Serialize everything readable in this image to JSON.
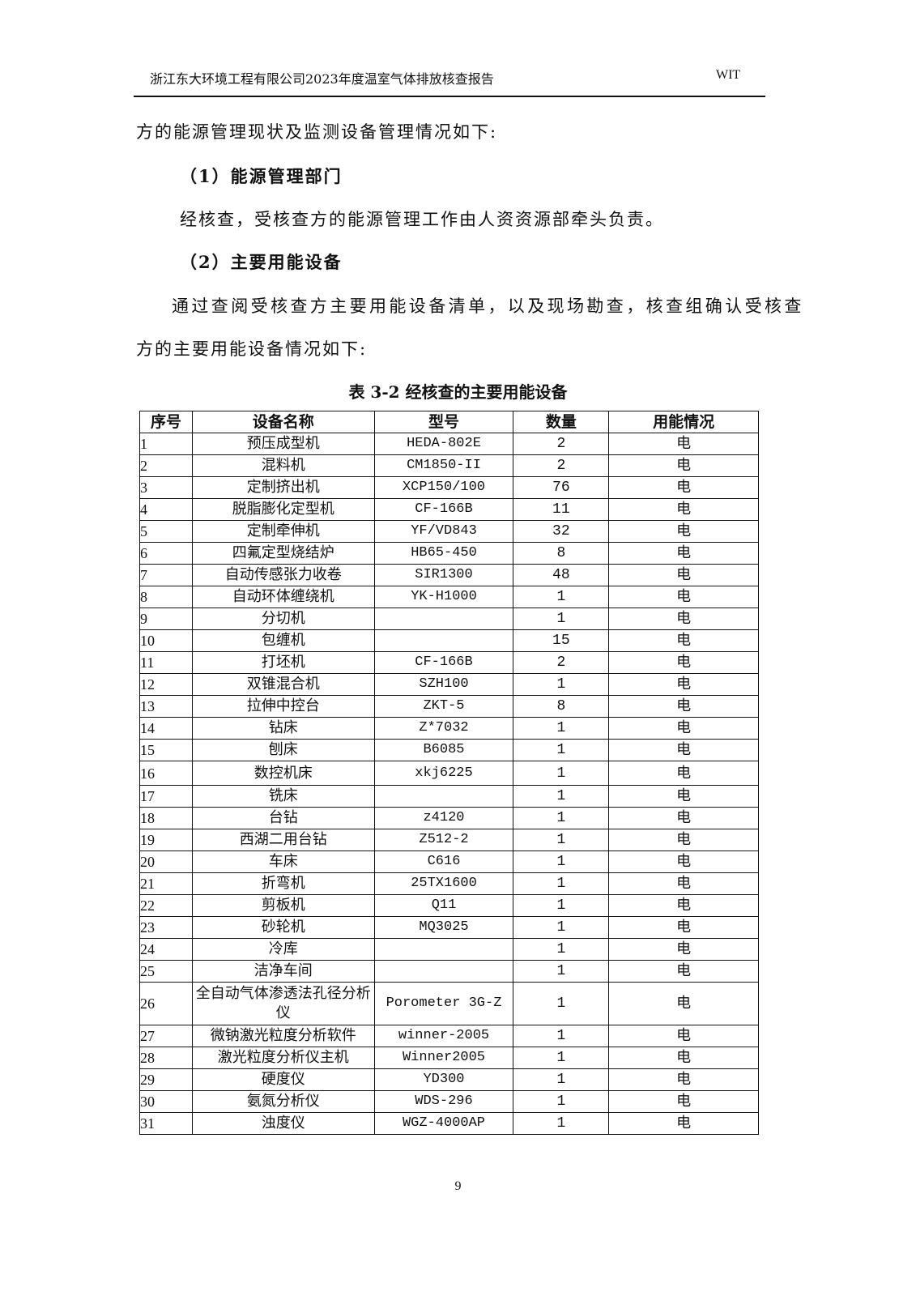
{
  "header": {
    "title": "浙江东大环境工程有限公司2023年度温室气体排放核查报告",
    "code": "WIT"
  },
  "body": {
    "line1": "方的能源管理现状及监测设备管理情况如下:",
    "h1": "（1）能源管理部门",
    "p1": "经核查，受核查方的能源管理工作由人资资源部牵头负责。",
    "h2": "（2）主要用能设备",
    "p2a": "通过查阅受核查方主要用能设备清单，以及现场勘查，核查组确认受核查",
    "p2b": "方的主要用能设备情况如下:"
  },
  "table": {
    "caption": "表 3-2  经核查的主要用能设备",
    "headers": [
      "序号",
      "设备名称",
      "型号",
      "数量",
      "用能情况"
    ],
    "rows": [
      [
        "1",
        "预压成型机",
        "HEDA-802E",
        "2",
        "电"
      ],
      [
        "2",
        "混料机",
        "CM1850-II",
        "2",
        "电"
      ],
      [
        "3",
        "定制挤出机",
        "XCP150/100",
        "76",
        "电"
      ],
      [
        "4",
        "脱脂膨化定型机",
        "CF-166B",
        "11",
        "电"
      ],
      [
        "5",
        "定制牵伸机",
        "YF/VD843",
        "32",
        "电"
      ],
      [
        "6",
        "四氟定型烧结炉",
        "HB65-450",
        "8",
        "电"
      ],
      [
        "7",
        "自动传感张力收卷",
        "SIR1300",
        "48",
        "电"
      ],
      [
        "8",
        "自动环体缠绕机",
        "YK-H1000",
        "1",
        "电"
      ],
      [
        "9",
        "分切机",
        "",
        "1",
        "电"
      ],
      [
        "10",
        "包缠机",
        "",
        "15",
        "电"
      ],
      [
        "11",
        "打坯机",
        "CF-166B",
        "2",
        "电"
      ],
      [
        "12",
        "双锥混合机",
        "SZH100",
        "1",
        "电"
      ],
      [
        "13",
        "拉伸中控台",
        "ZKT-5",
        "8",
        "电"
      ],
      [
        "14",
        "钻床",
        "Z*7032",
        "1",
        "电"
      ],
      [
        "15",
        "刨床",
        "B6085",
        "1",
        "电"
      ],
      [
        "16",
        "数控机床",
        "xkj6225",
        "1",
        "电"
      ],
      [
        "17",
        "铣床",
        "",
        "1",
        "电"
      ],
      [
        "18",
        "台钻",
        "z4120",
        "1",
        "电"
      ],
      [
        "19",
        "西湖二用台钻",
        "Z512-2",
        "1",
        "电"
      ],
      [
        "20",
        "车床",
        "C616",
        "1",
        "电"
      ],
      [
        "21",
        "折弯机",
        "25TX1600",
        "1",
        "电"
      ],
      [
        "22",
        "剪板机",
        "Q11",
        "1",
        "电"
      ],
      [
        "23",
        "砂轮机",
        "MQ3025",
        "1",
        "电"
      ],
      [
        "24",
        "冷库",
        "",
        "1",
        "电"
      ],
      [
        "25",
        "洁净车间",
        "",
        "1",
        "电"
      ],
      [
        "26",
        "全自动气体渗透法孔径分析仪",
        "Porometer 3G-Z",
        "1",
        "电"
      ],
      [
        "27",
        "微钠激光粒度分析软件",
        "winner-2005",
        "1",
        "电"
      ],
      [
        "28",
        "激光粒度分析仪主机",
        "Winner2005",
        "1",
        "电"
      ],
      [
        "29",
        "硬度仪",
        "YD300",
        "1",
        "电"
      ],
      [
        "30",
        "氨氮分析仪",
        "WDS-296",
        "1",
        "电"
      ],
      [
        "31",
        "浊度仪",
        "WGZ-4000AP",
        "1",
        "电"
      ]
    ]
  },
  "footer": {
    "page": "9"
  }
}
